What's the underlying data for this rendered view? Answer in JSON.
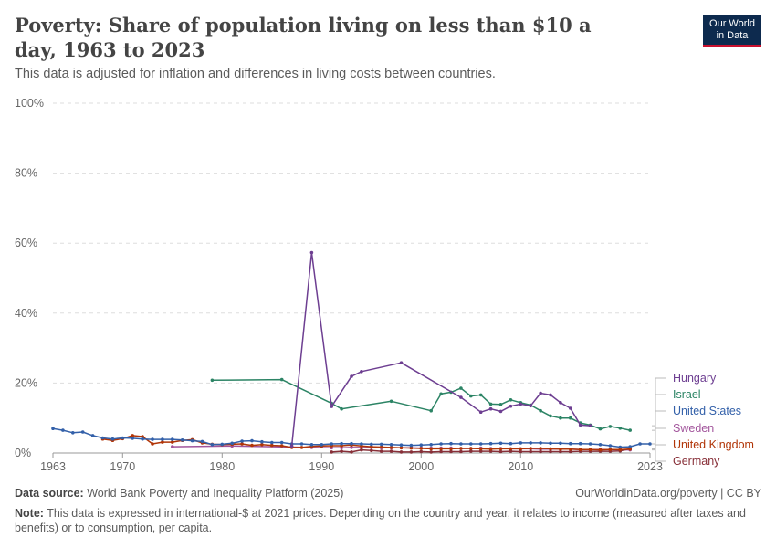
{
  "header": {
    "title": "Poverty: Share of population living on less than $10 a day, 1963 to 2023",
    "subtitle": "This data is adjusted for inflation and differences in living costs between countries.",
    "logo_line1": "Our World",
    "logo_line2": "in Data"
  },
  "footer": {
    "source_label": "Data source:",
    "source_text": "World Bank Poverty and Inequality Platform (2025)",
    "credit": "OurWorldinData.org/poverty | CC BY",
    "note_label": "Note:",
    "note_text": "This data is expressed in international-$ at 2021 prices. Depending on the country and year, it relates to income (measured after taxes and benefits) or to consumption, per capita."
  },
  "chart_data": {
    "type": "line",
    "title": "Poverty: Share of population living on less than $10 a day, 1963 to 2023",
    "xlim": [
      1963,
      2023
    ],
    "ylim": [
      0,
      100
    ],
    "x_ticks": [
      1963,
      1970,
      1980,
      1990,
      2000,
      2010,
      2023
    ],
    "y_ticks": [
      0,
      20,
      40,
      60,
      80,
      100
    ],
    "y_tick_labels": [
      "0%",
      "20%",
      "40%",
      "60%",
      "80%",
      "100%"
    ],
    "grid": "horizontal dashed",
    "legend": "right",
    "series": [
      {
        "name": "Hungary",
        "color": "#6d3e91",
        "x": [
          1987,
          1989,
          1991,
          1993,
          1994,
          1998,
          2004,
          2006,
          2007,
          2008,
          2009,
          2010,
          2011,
          2012,
          2013,
          2014,
          2015,
          2016,
          2017
        ],
        "y": [
          2.0,
          57.3,
          13.3,
          21.9,
          23.3,
          25.8,
          15.9,
          11.7,
          12.6,
          11.9,
          13.4,
          14.0,
          13.5,
          17.1,
          16.6,
          14.4,
          12.8,
          8.0,
          7.8
        ]
      },
      {
        "name": "Israel",
        "color": "#2c8465",
        "x": [
          1979,
          1986,
          1991,
          1992,
          1997,
          2001,
          2002,
          2003,
          2004,
          2005,
          2006,
          2007,
          2008,
          2009,
          2010,
          2011,
          2012,
          2013,
          2014,
          2015,
          2016,
          2017,
          2018,
          2019,
          2020,
          2021
        ],
        "y": [
          20.8,
          21.0,
          14.2,
          12.6,
          14.8,
          12.1,
          16.9,
          17.4,
          18.5,
          16.3,
          16.6,
          14.0,
          13.9,
          15.2,
          14.4,
          13.7,
          12.1,
          10.6,
          10.0,
          10.0,
          8.6,
          8.0,
          6.9,
          7.6,
          7.1,
          6.5
        ]
      },
      {
        "name": "United States",
        "color": "#3360a9",
        "x": [
          1963,
          1964,
          1965,
          1966,
          1967,
          1968,
          1969,
          1970,
          1971,
          1972,
          1973,
          1974,
          1975,
          1976,
          1977,
          1978,
          1979,
          1980,
          1981,
          1982,
          1983,
          1984,
          1985,
          1986,
          1987,
          1988,
          1989,
          1990,
          1991,
          1992,
          1993,
          1994,
          1995,
          1996,
          1997,
          1998,
          1999,
          2000,
          2001,
          2002,
          2003,
          2004,
          2005,
          2006,
          2007,
          2008,
          2009,
          2010,
          2011,
          2012,
          2013,
          2014,
          2015,
          2016,
          2017,
          2018,
          2019,
          2020,
          2021,
          2022,
          2023
        ],
        "y": [
          7.0,
          6.5,
          5.8,
          6.0,
          5.0,
          4.3,
          4.0,
          4.3,
          4.2,
          4.0,
          3.9,
          3.9,
          3.9,
          3.7,
          3.5,
          3.3,
          2.4,
          2.5,
          2.8,
          3.4,
          3.5,
          3.2,
          3.0,
          3.0,
          2.6,
          2.6,
          2.4,
          2.4,
          2.6,
          2.7,
          2.7,
          2.6,
          2.5,
          2.5,
          2.4,
          2.3,
          2.2,
          2.3,
          2.4,
          2.6,
          2.7,
          2.6,
          2.6,
          2.6,
          2.7,
          2.8,
          2.7,
          2.9,
          2.9,
          2.9,
          2.8,
          2.8,
          2.7,
          2.7,
          2.6,
          2.4,
          2.1,
          1.7,
          1.8,
          2.6,
          2.6
        ]
      },
      {
        "name": "Sweden",
        "color": "#a2559c",
        "x": [
          1975,
          1981,
          1987,
          1989,
          1991,
          1992,
          1993,
          1994,
          1995,
          1996,
          1997,
          1998,
          1999,
          2000,
          2001,
          2002,
          2003,
          2004,
          2005,
          2006,
          2007,
          2008,
          2009,
          2010,
          2011,
          2012,
          2013,
          2014,
          2015,
          2016,
          2017,
          2018,
          2019,
          2020,
          2021
        ],
        "y": [
          1.8,
          2.0,
          1.7,
          1.6,
          1.5,
          1.5,
          1.6,
          1.6,
          1.6,
          1.5,
          1.5,
          1.5,
          1.5,
          1.4,
          1.4,
          1.4,
          1.4,
          1.3,
          1.3,
          1.4,
          1.3,
          1.3,
          1.2,
          1.2,
          1.2,
          1.1,
          1.1,
          1.1,
          1.1,
          1.0,
          1.0,
          1.0,
          1.0,
          0.9,
          0.9
        ]
      },
      {
        "name": "United Kingdom",
        "color": "#b13507",
        "x": [
          1968,
          1969,
          1970,
          1971,
          1972,
          1973,
          1974,
          1975,
          1976,
          1977,
          1978,
          1979,
          1980,
          1981,
          1982,
          1983,
          1984,
          1985,
          1986,
          1987,
          1988,
          1989,
          1990,
          1991,
          1992,
          1993,
          1994,
          1995,
          1996,
          1997,
          1998,
          1999,
          2000,
          2001,
          2002,
          2003,
          2004,
          2005,
          2006,
          2007,
          2008,
          2009,
          2010,
          2011,
          2012,
          2013,
          2014,
          2015,
          2016,
          2017,
          2018,
          2019,
          2020,
          2021
        ],
        "y": [
          4.0,
          3.6,
          4.1,
          5.0,
          4.7,
          2.6,
          3.1,
          3.1,
          3.6,
          3.8,
          2.9,
          2.5,
          2.4,
          2.5,
          2.6,
          2.2,
          2.4,
          2.2,
          2.1,
          1.6,
          1.6,
          1.9,
          2.0,
          2.1,
          2.1,
          2.3,
          2.0,
          1.8,
          1.7,
          1.6,
          1.5,
          1.4,
          1.3,
          1.2,
          1.2,
          1.2,
          1.3,
          1.3,
          1.2,
          1.1,
          1.2,
          1.2,
          1.2,
          1.3,
          1.3,
          1.2,
          1.1,
          1.1,
          1.0,
          1.0,
          0.9,
          1.0,
          1.0,
          1.1
        ]
      },
      {
        "name": "Germany",
        "color": "#883039",
        "x": [
          1991,
          1992,
          1993,
          1994,
          1995,
          1996,
          1997,
          1998,
          1999,
          2000,
          2001,
          2002,
          2003,
          2004,
          2005,
          2006,
          2007,
          2008,
          2009,
          2010,
          2011,
          2012,
          2013,
          2014,
          2015,
          2016,
          2017,
          2018,
          2019,
          2020,
          2021
        ],
        "y": [
          0.3,
          0.5,
          0.3,
          0.9,
          0.7,
          0.5,
          0.5,
          0.3,
          0.3,
          0.4,
          0.3,
          0.4,
          0.4,
          0.4,
          0.5,
          0.5,
          0.5,
          0.4,
          0.5,
          0.4,
          0.4,
          0.4,
          0.4,
          0.4,
          0.4,
          0.5,
          0.5,
          0.5,
          0.5,
          0.6,
          1.2
        ]
      }
    ]
  }
}
